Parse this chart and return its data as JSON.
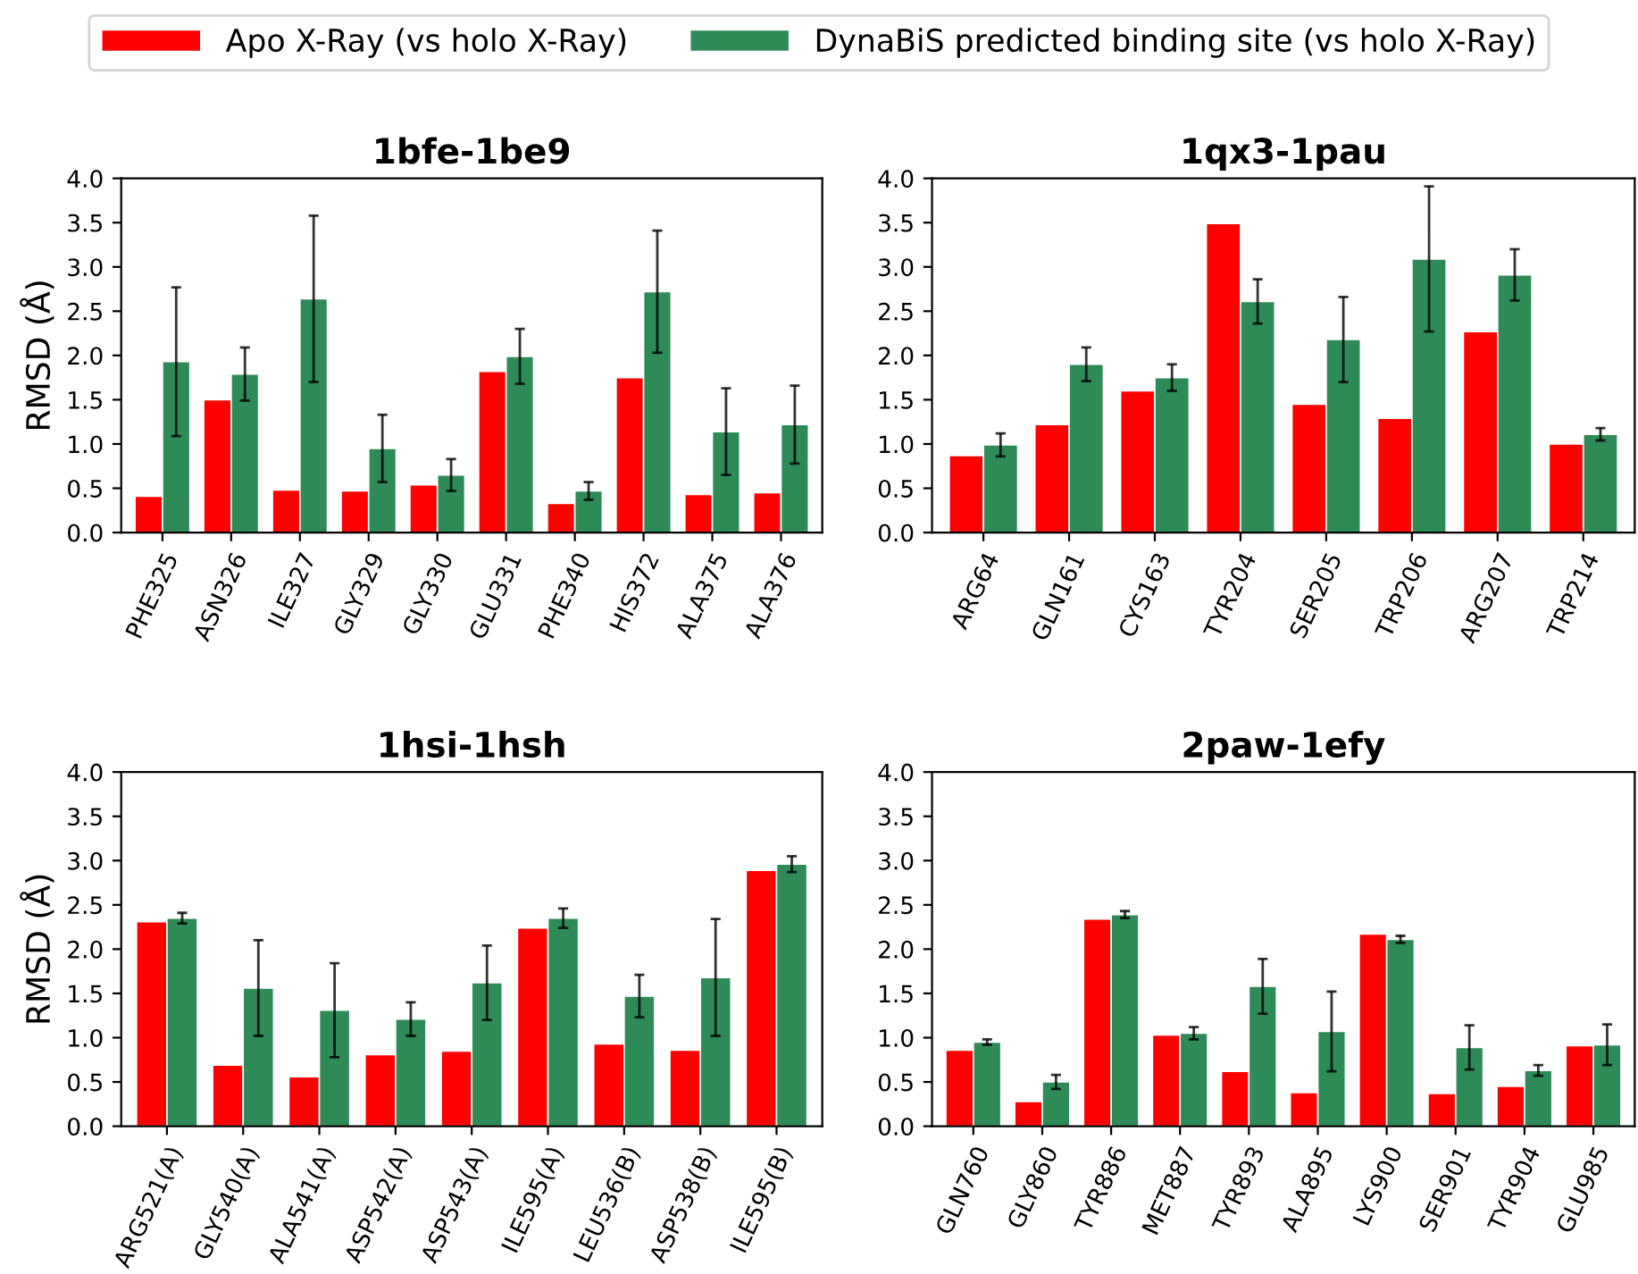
{
  "chart_data": [
    {
      "type": "bar",
      "title": "1bfe-1be9",
      "ylabel": "RMSD (Å)",
      "legend": "top",
      "categories": [
        "PHE325",
        "ASN326",
        "ILE327",
        "GLY329",
        "GLY330",
        "GLU331",
        "PHE340",
        "HIS372",
        "ALA375",
        "ALA376"
      ],
      "ylim": [
        0,
        4
      ],
      "yticks": [
        {
          "value": 0,
          "label": "0.0"
        },
        {
          "value": 0.5,
          "label": "0.5"
        },
        {
          "value": 1,
          "label": "1.0"
        },
        {
          "value": 1.5,
          "label": "1.5"
        },
        {
          "value": 2,
          "label": "2.0"
        },
        {
          "value": 2.5,
          "label": "2.5"
        },
        {
          "value": 3,
          "label": "3.0"
        },
        {
          "value": 3.5,
          "label": "3.5"
        },
        {
          "value": 4,
          "label": "4.0"
        }
      ],
      "series": [
        {
          "name": "Apo X-Ray (vs holo X-Ray)",
          "color": "#ff0000",
          "values": [
            0.41,
            1.5,
            0.48,
            0.47,
            0.54,
            1.82,
            0.33,
            1.75,
            0.43,
            0.45
          ]
        },
        {
          "name": "DynaBiS predicted binding site (vs holo X-Ray)",
          "color": "#2e8b57",
          "values": [
            1.93,
            1.79,
            2.64,
            0.95,
            0.65,
            1.99,
            0.47,
            2.72,
            1.14,
            1.22
          ],
          "errors": [
            0.84,
            0.3,
            0.94,
            0.38,
            0.18,
            0.31,
            0.1,
            0.69,
            0.49,
            0.44
          ]
        }
      ]
    },
    {
      "type": "bar",
      "title": "1qx3-1pau",
      "categories": [
        "ARG64",
        "GLN161",
        "CYS163",
        "TYR204",
        "SER205",
        "TRP206",
        "ARG207",
        "TRP214"
      ],
      "ylim": [
        0,
        4
      ],
      "yticks": [
        {
          "value": 0,
          "label": "0.0"
        },
        {
          "value": 0.5,
          "label": "0.5"
        },
        {
          "value": 1,
          "label": "1.0"
        },
        {
          "value": 1.5,
          "label": "1.5"
        },
        {
          "value": 2,
          "label": "2.0"
        },
        {
          "value": 2.5,
          "label": "2.5"
        },
        {
          "value": 3,
          "label": "3.0"
        },
        {
          "value": 3.5,
          "label": "3.5"
        },
        {
          "value": 4,
          "label": "4.0"
        }
      ],
      "series": [
        {
          "color": "#ff0000",
          "values": [
            0.87,
            1.22,
            1.6,
            3.49,
            1.45,
            1.29,
            2.27,
            1.0
          ]
        },
        {
          "color": "#2e8b57",
          "values": [
            0.99,
            1.9,
            1.75,
            2.61,
            2.18,
            3.09,
            2.91,
            1.11
          ],
          "errors": [
            0.13,
            0.19,
            0.15,
            0.25,
            0.48,
            0.82,
            0.29,
            0.07
          ]
        }
      ]
    },
    {
      "type": "bar",
      "title": "1hsi-1hsh",
      "ylabel": "RMSD (Å)",
      "categories": [
        "ARG521(A)",
        "GLY540(A)",
        "ALA541(A)",
        "ASP542(A)",
        "ASP543(A)",
        "ILE595(A)",
        "LEU536(B)",
        "ASP538(B)",
        "ILE595(B)"
      ],
      "ylim": [
        0,
        4
      ],
      "yticks": [
        {
          "value": 0,
          "label": "0.0"
        },
        {
          "value": 0.5,
          "label": "0.5"
        },
        {
          "value": 1,
          "label": "1.0"
        },
        {
          "value": 1.5,
          "label": "1.5"
        },
        {
          "value": 2,
          "label": "2.0"
        },
        {
          "value": 2.5,
          "label": "2.5"
        },
        {
          "value": 3,
          "label": "3.0"
        },
        {
          "value": 3.5,
          "label": "3.5"
        },
        {
          "value": 4,
          "label": "4.0"
        }
      ],
      "series": [
        {
          "color": "#ff0000",
          "values": [
            2.31,
            0.69,
            0.56,
            0.81,
            0.85,
            2.24,
            0.93,
            0.86,
            2.89
          ]
        },
        {
          "color": "#2e8b57",
          "values": [
            2.35,
            1.56,
            1.31,
            1.21,
            1.62,
            2.35,
            1.47,
            1.68,
            2.96
          ],
          "errors": [
            0.06,
            0.54,
            0.53,
            0.19,
            0.42,
            0.11,
            0.24,
            0.66,
            0.09
          ]
        }
      ]
    },
    {
      "type": "bar",
      "title": "2paw-1efy",
      "categories": [
        "GLN760",
        "GLY860",
        "TYR886",
        "MET887",
        "TYR893",
        "ALA895",
        "LYS900",
        "SER901",
        "TYR904",
        "GLU985"
      ],
      "ylim": [
        0,
        4
      ],
      "yticks": [
        {
          "value": 0,
          "label": "0.0"
        },
        {
          "value": 0.5,
          "label": "0.5"
        },
        {
          "value": 1,
          "label": "1.0"
        },
        {
          "value": 1.5,
          "label": "1.5"
        },
        {
          "value": 2,
          "label": "2.0"
        },
        {
          "value": 2.5,
          "label": "2.5"
        },
        {
          "value": 3,
          "label": "3.0"
        },
        {
          "value": 3.5,
          "label": "3.5"
        },
        {
          "value": 4,
          "label": "4.0"
        }
      ],
      "series": [
        {
          "color": "#ff0000",
          "values": [
            0.86,
            0.28,
            2.34,
            1.03,
            0.62,
            0.38,
            2.17,
            0.37,
            0.45,
            0.91
          ]
        },
        {
          "color": "#2e8b57",
          "values": [
            0.95,
            0.5,
            2.39,
            1.05,
            1.58,
            1.07,
            2.11,
            0.89,
            0.63,
            0.92
          ],
          "errors": [
            0.03,
            0.08,
            0.04,
            0.07,
            0.31,
            0.45,
            0.04,
            0.25,
            0.06,
            0.23
          ]
        }
      ]
    }
  ]
}
